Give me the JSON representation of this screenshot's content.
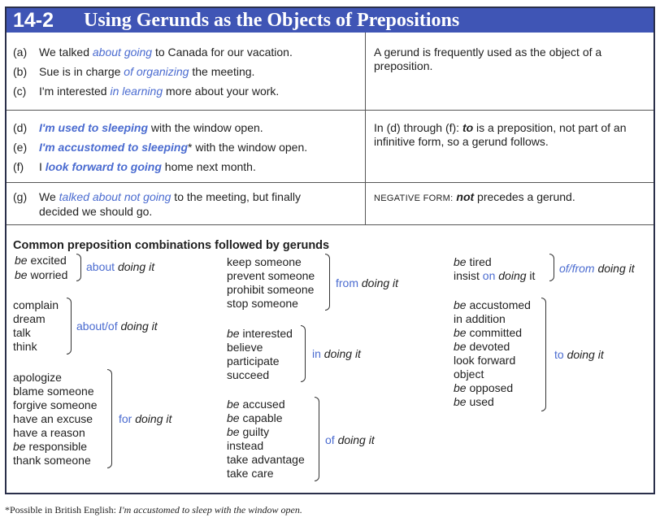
{
  "header": {
    "number": "14-2",
    "title": "Using Gerunds as the Objects of Prepositions"
  },
  "rows": [
    {
      "examples": [
        {
          "label": "(a)",
          "pre": "We talked ",
          "hl": "about going",
          "post": " to Canada for our vacation."
        },
        {
          "label": "(b)",
          "pre": "Sue is in charge ",
          "hl": "of organizing",
          "post": " the meeting."
        },
        {
          "label": "(c)",
          "pre": "I'm interested ",
          "hl": "in learning",
          "post": " more about your work."
        }
      ],
      "explanation": {
        "lead": "",
        "text": "A gerund is frequently used as the object of a preposition."
      }
    },
    {
      "examples": [
        {
          "label": "(d)",
          "pre": "",
          "hl": "I'm used to sleeping",
          "post": " with the window open."
        },
        {
          "label": "(e)",
          "pre": "",
          "hl": "I'm accustomed to sleeping",
          "post": "* with the window open."
        },
        {
          "label": "(f)",
          "pre": "I ",
          "hl": "look forward to going",
          "post": " home next month."
        }
      ],
      "explanation": {
        "lead": "In (d) through (f): ",
        "key": "to",
        "text": " is a preposition, not part of an infinitive form, so a gerund follows."
      }
    },
    {
      "examples": [
        {
          "label": "(g)",
          "pre": "We ",
          "hl": "talked about not going",
          "post": " to the meeting, but finally",
          "line2": "decided we should go."
        }
      ],
      "explanation": {
        "lead": "NEGATIVE FORM:",
        "key": "not",
        "text": " precedes a gerund."
      }
    }
  ],
  "common": {
    "heading": "Common preposition combinations followed by gerunds",
    "groups": [
      {
        "words": [
          "be excited",
          "be worried"
        ],
        "prep": "about",
        "tail": "doing it"
      },
      {
        "words": [
          "complain",
          "dream",
          "talk",
          "think"
        ],
        "prep": "about/of",
        "tail": "doing it"
      },
      {
        "words": [
          "apologize",
          "blame someone",
          "forgive someone",
          "have an excuse",
          "have a reason",
          "be responsible",
          "thank someone"
        ],
        "prep": "for",
        "tail": "doing it"
      },
      {
        "words": [
          "keep someone",
          "prevent someone",
          "prohibit someone",
          "stop someone"
        ],
        "prep": "from",
        "tail": "doing it"
      },
      {
        "words": [
          "be interested",
          "believe",
          "participate",
          "succeed"
        ],
        "prep": "in",
        "tail": "doing it"
      },
      {
        "words": [
          "be accused",
          "be capable",
          "be guilty",
          "instead",
          "take advantage",
          "take care"
        ],
        "prep": "of",
        "tail": "doing it"
      },
      {
        "words": [
          "be tired",
          "insist on doing it"
        ],
        "prep": "of/from",
        "tail": "doing it"
      },
      {
        "words": [
          "be accustomed",
          "in addition",
          "be committed",
          "be devoted",
          "look forward",
          "object",
          "be opposed",
          "be used"
        ],
        "prep": "to",
        "tail": "doing it"
      }
    ]
  },
  "footnote": {
    "lead": "*Possible in British English: ",
    "example": "I'm accustomed to sleep with the window open."
  }
}
